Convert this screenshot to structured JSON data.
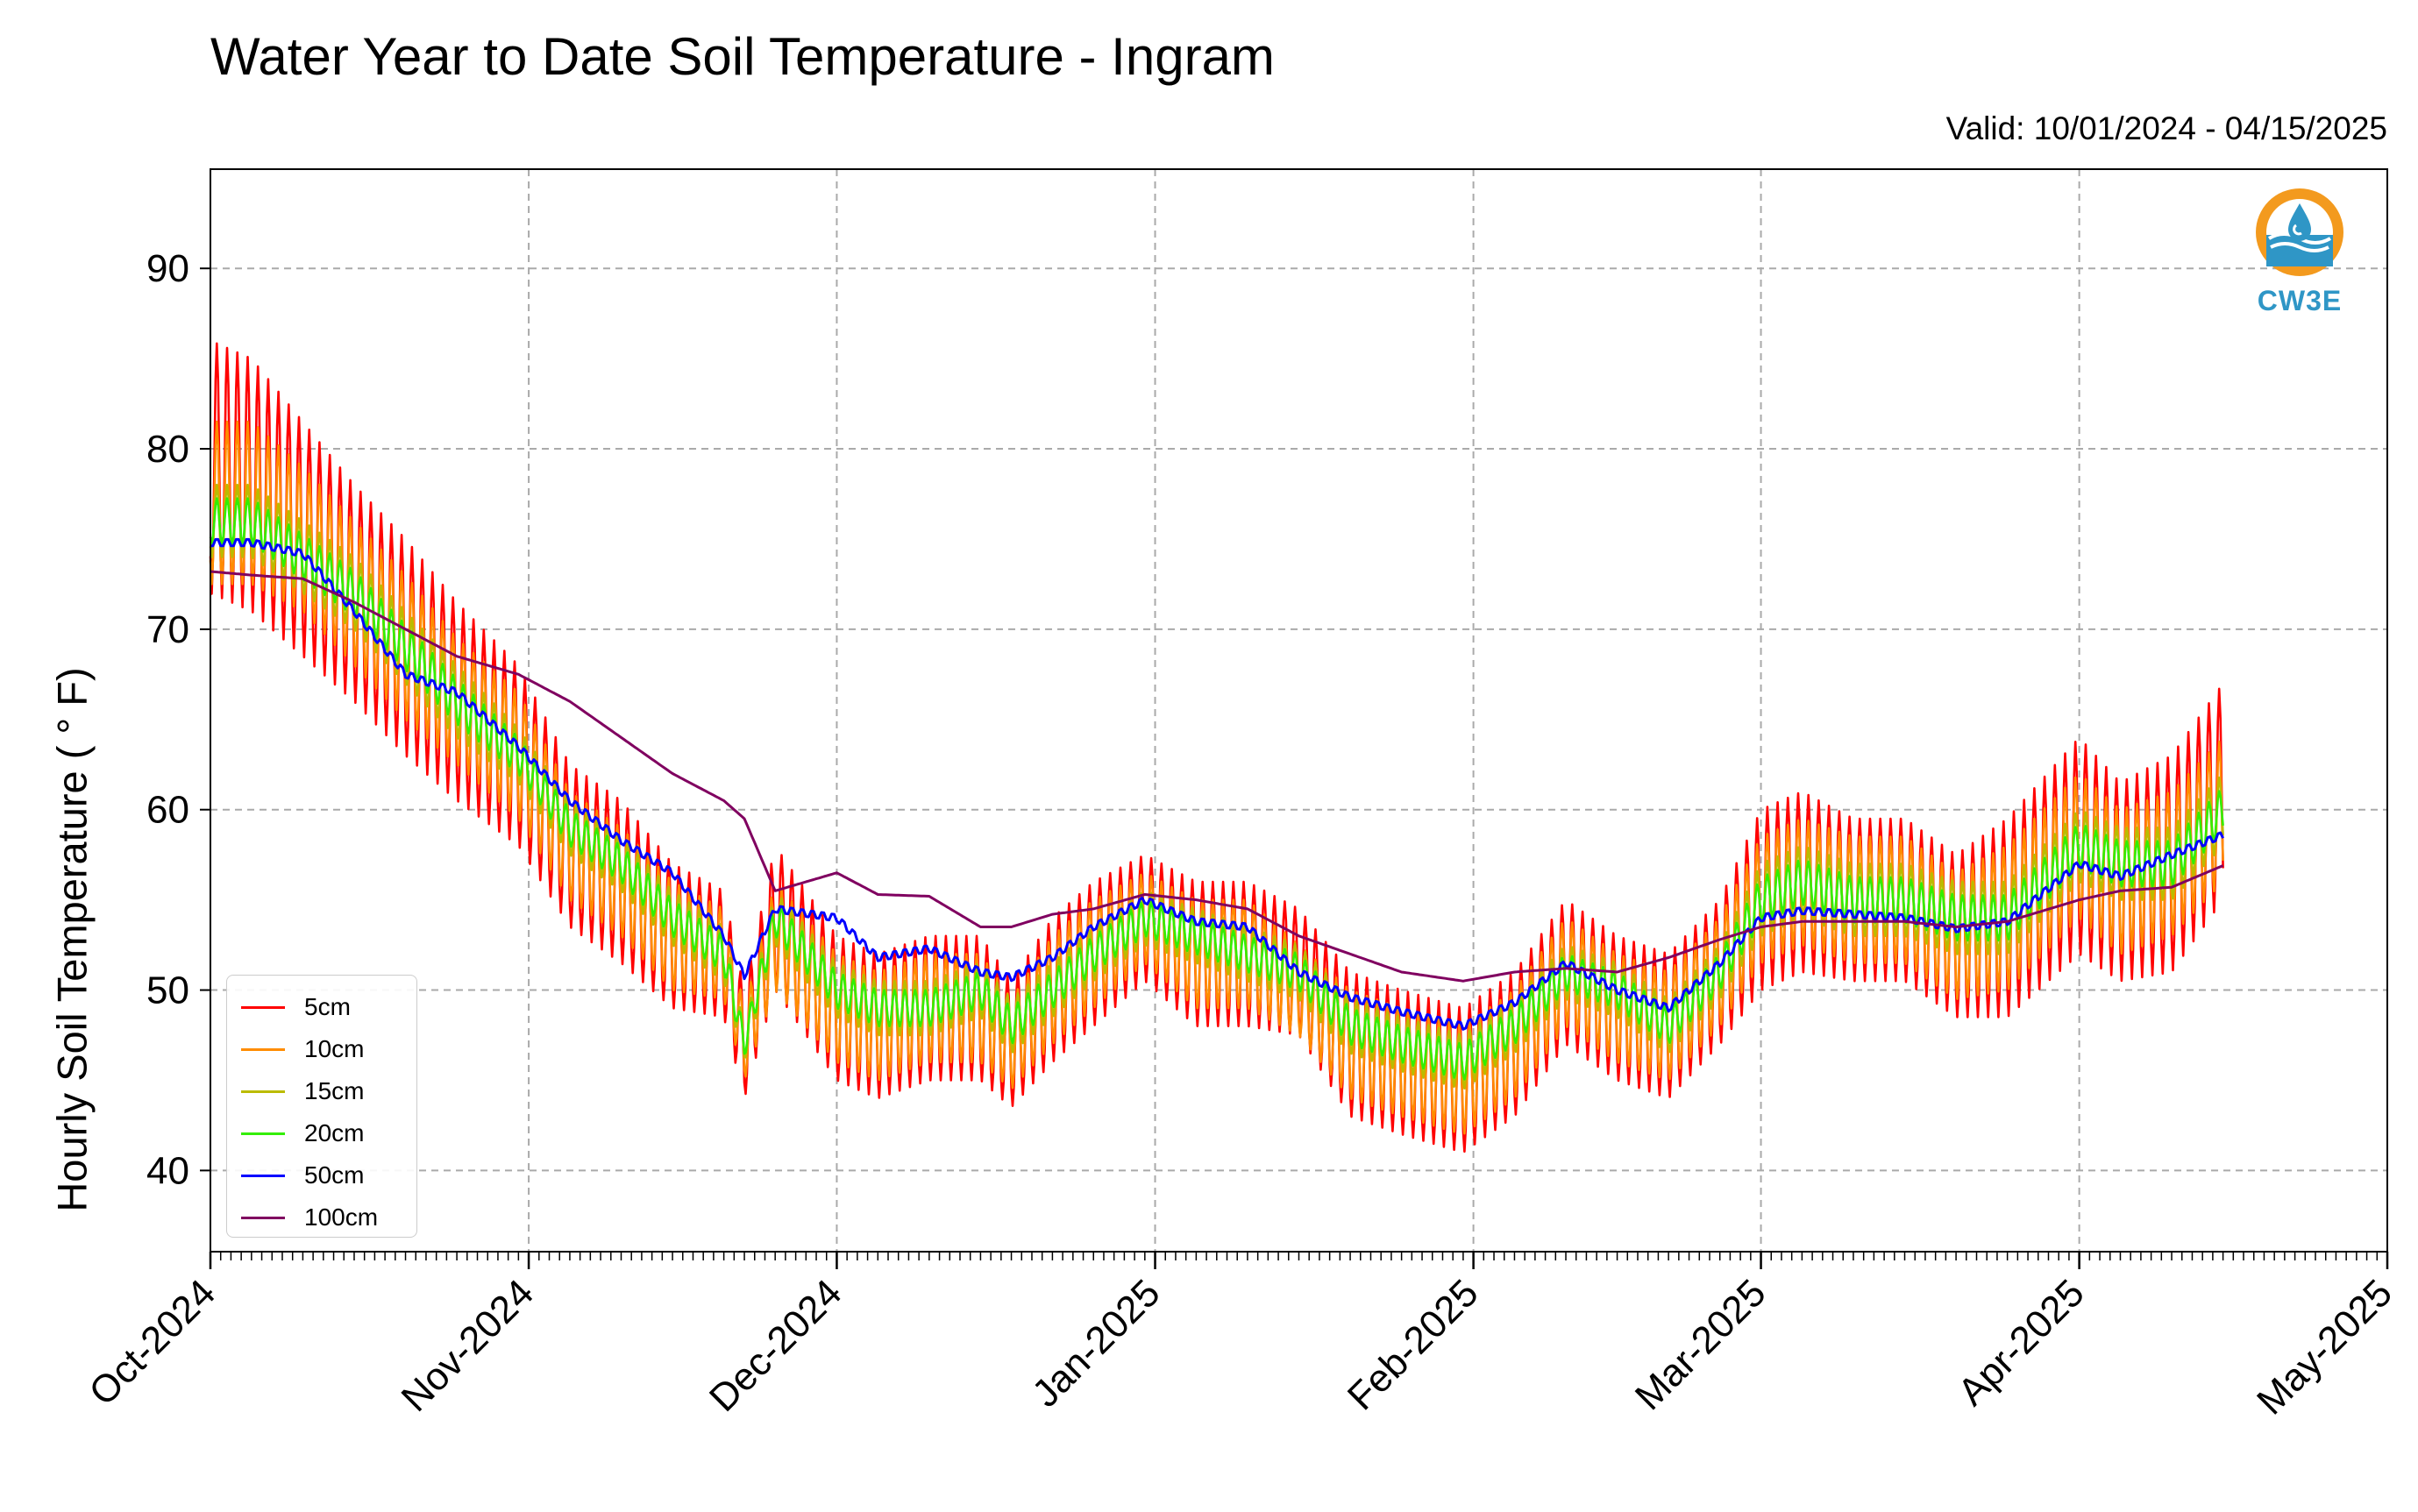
{
  "title": "Water Year to Date Soil Temperature - Ingram",
  "valid_text": "Valid: 10/01/2024 - 04/15/2025",
  "logo_text": "CW3E",
  "chart_data": {
    "type": "line",
    "title": "Water Year to Date Soil Temperature - Ingram",
    "ylabel": "Hourly Soil Temperature ( ° F)",
    "xlabel": "",
    "x_range": [
      "2024-10-01",
      "2025-05-01"
    ],
    "ylim": [
      35.5,
      95.5
    ],
    "yticks": [
      40,
      50,
      60,
      70,
      80,
      90
    ],
    "xticks": [
      "2024-10-01",
      "2024-11-01",
      "2024-12-01",
      "2025-01-01",
      "2025-02-01",
      "2025-03-01",
      "2025-04-01",
      "2025-05-01"
    ],
    "xtick_labels": [
      "Oct-2024",
      "Nov-2024",
      "Dec-2024",
      "Jan-2025",
      "Feb-2025",
      "Mar-2025",
      "Apr-2025",
      "May-2025"
    ],
    "grid": true,
    "legend_position": "bottom-left",
    "series_note": "Values estimated from the plot; daily mean with approximate diurnal range (min/max)",
    "series": [
      {
        "name": "5cm",
        "color": "#ff0000",
        "dates": [
          "2024-10-01",
          "2024-10-05",
          "2024-10-10",
          "2024-10-15",
          "2024-10-20",
          "2024-10-25",
          "2024-10-31",
          "2024-11-05",
          "2024-11-10",
          "2024-11-15",
          "2024-11-20",
          "2024-11-22",
          "2024-11-25",
          "2024-12-01",
          "2024-12-05",
          "2024-12-10",
          "2024-12-15",
          "2024-12-18",
          "2024-12-22",
          "2024-12-26",
          "2024-12-31",
          "2025-01-05",
          "2025-01-10",
          "2025-01-15",
          "2025-01-20",
          "2025-01-25",
          "2025-01-31",
          "2025-02-05",
          "2025-02-10",
          "2025-02-15",
          "2025-02-20",
          "2025-02-25",
          "2025-03-01",
          "2025-03-05",
          "2025-03-10",
          "2025-03-15",
          "2025-03-20",
          "2025-03-25",
          "2025-04-01",
          "2025-04-05",
          "2025-04-10",
          "2025-04-15"
        ],
        "mean": [
          79,
          78,
          75,
          72,
          69,
          66,
          63,
          58,
          56,
          53,
          52,
          47,
          54,
          49,
          48,
          49,
          49,
          47,
          50,
          52,
          54,
          52,
          52,
          51,
          47,
          46,
          45,
          47,
          51,
          49,
          48,
          51,
          55,
          56,
          55,
          55,
          53,
          54,
          58,
          56,
          57,
          61
        ],
        "range": [
          14,
          14,
          13,
          12,
          12,
          11,
          10,
          9,
          9,
          8,
          7,
          6,
          8,
          8,
          8,
          8,
          8,
          7,
          8,
          8,
          7,
          8,
          8,
          7,
          8,
          8,
          8,
          8,
          8,
          8,
          8,
          8,
          10,
          10,
          9,
          9,
          9,
          11,
          12,
          11,
          12,
          12
        ]
      },
      {
        "name": "10cm",
        "color": "#ff8c00",
        "dates": [
          "2024-10-01",
          "2024-10-05",
          "2024-10-10",
          "2024-10-15",
          "2024-10-20",
          "2024-10-25",
          "2024-10-31",
          "2024-11-05",
          "2024-11-10",
          "2024-11-15",
          "2024-11-20",
          "2024-11-22",
          "2024-11-25",
          "2024-12-01",
          "2024-12-05",
          "2024-12-10",
          "2024-12-15",
          "2024-12-18",
          "2024-12-22",
          "2024-12-26",
          "2024-12-31",
          "2025-01-05",
          "2025-01-10",
          "2025-01-15",
          "2025-01-20",
          "2025-01-25",
          "2025-01-31",
          "2025-02-05",
          "2025-02-10",
          "2025-02-15",
          "2025-02-20",
          "2025-02-25",
          "2025-03-01",
          "2025-03-05",
          "2025-03-10",
          "2025-03-15",
          "2025-03-20",
          "2025-03-25",
          "2025-04-01",
          "2025-04-05",
          "2025-04-10",
          "2025-04-15"
        ],
        "mean": [
          77,
          77,
          75,
          72,
          69,
          66,
          63,
          58,
          56,
          53,
          52,
          47,
          53,
          49,
          48,
          49,
          49,
          47,
          50,
          52,
          54,
          52,
          52,
          50,
          47,
          46,
          45,
          47,
          51,
          49,
          48,
          51,
          55,
          56,
          55,
          55,
          53,
          54,
          58,
          56,
          57,
          60
        ],
        "range": [
          9,
          9,
          8,
          8,
          8,
          7,
          7,
          6,
          6,
          6,
          5,
          4,
          6,
          6,
          6,
          6,
          6,
          5,
          6,
          6,
          5,
          6,
          6,
          5,
          6,
          6,
          6,
          6,
          6,
          6,
          6,
          6,
          7,
          7,
          7,
          7,
          7,
          8,
          8,
          8,
          8,
          8
        ]
      },
      {
        "name": "15cm",
        "color": "#bbbb00",
        "dates": [
          "2024-10-01",
          "2024-10-05",
          "2024-10-10",
          "2024-10-15",
          "2024-10-20",
          "2024-10-25",
          "2024-10-31",
          "2024-11-05",
          "2024-11-10",
          "2024-11-15",
          "2024-11-20",
          "2024-11-22",
          "2024-11-25",
          "2024-12-01",
          "2024-12-05",
          "2024-12-10",
          "2024-12-15",
          "2024-12-18",
          "2024-12-22",
          "2024-12-26",
          "2024-12-31",
          "2025-01-05",
          "2025-01-10",
          "2025-01-15",
          "2025-01-20",
          "2025-01-25",
          "2025-01-31",
          "2025-02-05",
          "2025-02-10",
          "2025-02-15",
          "2025-02-20",
          "2025-02-25",
          "2025-03-01",
          "2025-03-05",
          "2025-03-10",
          "2025-03-15",
          "2025-03-20",
          "2025-03-25",
          "2025-04-01",
          "2025-04-05",
          "2025-04-10",
          "2025-04-15"
        ],
        "mean": [
          76,
          76,
          74,
          72,
          69,
          66,
          63,
          59,
          57,
          54,
          52,
          47,
          54,
          50,
          49,
          49,
          50,
          48,
          50,
          52,
          54,
          53,
          52,
          51,
          48,
          47,
          46,
          48,
          51,
          50,
          48,
          51,
          55,
          56,
          55,
          55,
          54,
          54,
          58,
          57,
          57,
          60
        ],
        "range": [
          4,
          4,
          4,
          4,
          4,
          4,
          3,
          3,
          3,
          3,
          3,
          2,
          3,
          3,
          3,
          3,
          3,
          3,
          3,
          3,
          3,
          3,
          3,
          3,
          3,
          3,
          3,
          3,
          3,
          3,
          3,
          3,
          4,
          4,
          4,
          4,
          4,
          4,
          4,
          4,
          4,
          4
        ]
      },
      {
        "name": "20cm",
        "color": "#33ee00",
        "dates": [
          "2024-10-01",
          "2024-10-05",
          "2024-10-10",
          "2024-10-15",
          "2024-10-20",
          "2024-10-25",
          "2024-10-31",
          "2024-11-05",
          "2024-11-10",
          "2024-11-15",
          "2024-11-20",
          "2024-11-22",
          "2024-11-25",
          "2024-12-01",
          "2024-12-05",
          "2024-12-10",
          "2024-12-15",
          "2024-12-18",
          "2024-12-22",
          "2024-12-26",
          "2024-12-31",
          "2025-01-05",
          "2025-01-10",
          "2025-01-15",
          "2025-01-20",
          "2025-01-25",
          "2025-01-31",
          "2025-02-05",
          "2025-02-10",
          "2025-02-15",
          "2025-02-20",
          "2025-02-25",
          "2025-03-01",
          "2025-03-05",
          "2025-03-10",
          "2025-03-15",
          "2025-03-20",
          "2025-03-25",
          "2025-04-01",
          "2025-04-05",
          "2025-04-10",
          "2025-04-15"
        ],
        "mean": [
          76,
          76,
          74,
          72,
          69,
          66,
          63,
          59,
          57,
          54,
          52,
          47,
          54,
          50,
          49,
          49,
          50,
          48,
          50,
          52,
          54,
          53,
          52,
          51,
          48,
          47,
          46,
          48,
          51,
          50,
          48,
          51,
          55,
          56,
          55,
          55,
          54,
          54,
          58,
          57,
          57,
          60
        ],
        "range": [
          2.5,
          2.5,
          2.5,
          2.5,
          2.5,
          2.5,
          2,
          2,
          2,
          2,
          2,
          1.5,
          2,
          2,
          2,
          2,
          2,
          2,
          2,
          2,
          2,
          2,
          2,
          2,
          2,
          2,
          2,
          2,
          2,
          2,
          2,
          2,
          2.5,
          2.5,
          2.5,
          2.5,
          2.5,
          2.5,
          2.5,
          2.5,
          2.5,
          2.5
        ]
      },
      {
        "name": "50cm",
        "color": "#0000ff",
        "dates": [
          "2024-10-01",
          "2024-10-05",
          "2024-10-10",
          "2024-10-15",
          "2024-10-20",
          "2024-10-25",
          "2024-10-31",
          "2024-11-05",
          "2024-11-10",
          "2024-11-15",
          "2024-11-20",
          "2024-11-22",
          "2024-11-25",
          "2024-12-01",
          "2024-12-05",
          "2024-12-10",
          "2024-12-15",
          "2024-12-18",
          "2024-12-22",
          "2024-12-26",
          "2024-12-31",
          "2025-01-05",
          "2025-01-10",
          "2025-01-15",
          "2025-01-20",
          "2025-01-25",
          "2025-01-31",
          "2025-02-05",
          "2025-02-10",
          "2025-02-15",
          "2025-02-20",
          "2025-02-25",
          "2025-03-01",
          "2025-03-05",
          "2025-03-10",
          "2025-03-15",
          "2025-03-20",
          "2025-03-25",
          "2025-04-01",
          "2025-04-05",
          "2025-04-10",
          "2025-04-15"
        ],
        "mean": [
          74.8,
          74.8,
          74.2,
          71,
          67.5,
          66.5,
          63.5,
          60.5,
          58.3,
          56.5,
          53,
          50.8,
          54.5,
          54,
          51.8,
          52.3,
          51,
          50.7,
          51.8,
          53.5,
          55,
          53.8,
          53.5,
          51,
          49.6,
          48.8,
          48,
          49.3,
          51.5,
          50,
          49,
          51.5,
          54,
          54.4,
          54.2,
          54,
          53.4,
          53.8,
          57,
          56.3,
          57.5,
          58.6
        ],
        "range": [
          0.5,
          0.5,
          0.5,
          0.5,
          0.5,
          0.5,
          0.5,
          0.5,
          0.5,
          0.5,
          0.5,
          0.5,
          0.5,
          0.5,
          0.5,
          0.5,
          0.5,
          0.5,
          0.5,
          0.5,
          0.5,
          0.5,
          0.5,
          0.5,
          0.5,
          0.5,
          0.5,
          0.5,
          0.5,
          0.5,
          0.5,
          0.5,
          0.5,
          0.5,
          0.5,
          0.5,
          0.5,
          0.5,
          0.5,
          0.5,
          0.5,
          0.5
        ]
      },
      {
        "name": "100cm",
        "color": "#800060",
        "dates": [
          "2024-10-01",
          "2024-10-05",
          "2024-10-10",
          "2024-10-15",
          "2024-10-20",
          "2024-10-25",
          "2024-10-31",
          "2024-11-05",
          "2024-11-10",
          "2024-11-15",
          "2024-11-20",
          "2024-11-22",
          "2024-11-25",
          "2024-12-01",
          "2024-12-05",
          "2024-12-10",
          "2024-12-15",
          "2024-12-18",
          "2024-12-22",
          "2024-12-26",
          "2024-12-31",
          "2025-01-05",
          "2025-01-10",
          "2025-01-15",
          "2025-01-20",
          "2025-01-25",
          "2025-01-31",
          "2025-02-05",
          "2025-02-10",
          "2025-02-15",
          "2025-02-20",
          "2025-02-25",
          "2025-03-01",
          "2025-03-05",
          "2025-03-10",
          "2025-03-15",
          "2025-03-20",
          "2025-03-25",
          "2025-04-01",
          "2025-04-05",
          "2025-04-10",
          "2025-04-15"
        ],
        "mean": [
          73.2,
          73,
          72.8,
          71.5,
          70,
          68.5,
          67.5,
          66,
          64,
          62,
          60.5,
          59.5,
          55.5,
          56.5,
          55.3,
          55.2,
          53.5,
          53.5,
          54.2,
          54.5,
          55.3,
          55,
          54.5,
          53,
          52,
          51,
          50.5,
          51,
          51.2,
          51,
          51.8,
          52.8,
          53.5,
          53.8,
          53.8,
          53.8,
          53.5,
          53.8,
          55,
          55.5,
          55.7,
          56.9
        ],
        "range": [
          0,
          0,
          0,
          0,
          0,
          0,
          0,
          0,
          0,
          0,
          0,
          0,
          0,
          0,
          0,
          0,
          0,
          0,
          0,
          0,
          0,
          0,
          0,
          0,
          0,
          0,
          0,
          0,
          0,
          0,
          0,
          0,
          0,
          0,
          0,
          0,
          0,
          0,
          0,
          0,
          0,
          0
        ]
      }
    ]
  }
}
